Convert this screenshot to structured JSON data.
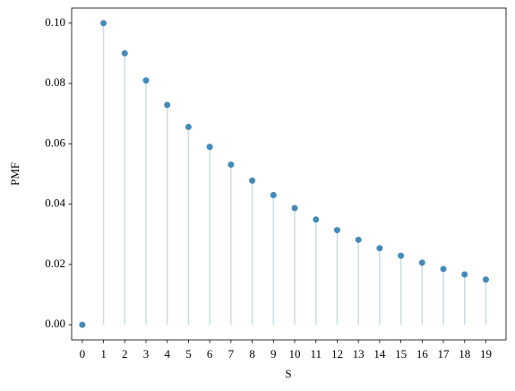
{
  "chart_data": {
    "type": "stem",
    "xlabel": "S",
    "ylabel": "PMF",
    "x": [
      0,
      1,
      2,
      3,
      4,
      5,
      6,
      7,
      8,
      9,
      10,
      11,
      12,
      13,
      14,
      15,
      16,
      17,
      18,
      19
    ],
    "values": [
      0,
      0.1,
      0.09,
      0.081,
      0.0729,
      0.0656,
      0.059,
      0.0531,
      0.0478,
      0.043,
      0.0387,
      0.0349,
      0.0314,
      0.0282,
      0.0254,
      0.0229,
      0.0206,
      0.0185,
      0.0167,
      0.015
    ],
    "color": "#3a85b5",
    "stem_color": "#c9dde9",
    "xlim": [
      -0.5,
      19.95
    ],
    "ylim": [
      -0.005,
      0.105
    ],
    "xticks": [
      0,
      1,
      2,
      3,
      4,
      5,
      6,
      7,
      8,
      9,
      10,
      11,
      12,
      13,
      14,
      15,
      16,
      17,
      18,
      19
    ],
    "yticks": [
      {
        "value": 0,
        "label": "0.00"
      },
      {
        "value": 0.02,
        "label": "0.02"
      },
      {
        "value": 0.04,
        "label": "0.04"
      },
      {
        "value": 0.06,
        "label": "0.06"
      },
      {
        "value": 0.08,
        "label": "0.08"
      },
      {
        "value": 0.1,
        "label": "0.10"
      }
    ]
  }
}
